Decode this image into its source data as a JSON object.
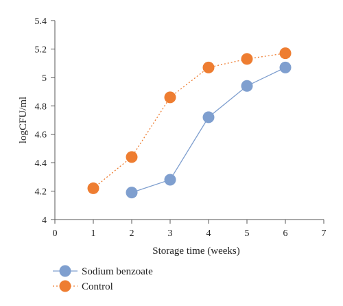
{
  "chart_data": {
    "type": "line",
    "title": "",
    "xlabel": "Storage time (weeks)",
    "ylabel": "logCFU/ml",
    "xlim": [
      0,
      7
    ],
    "ylim": [
      4,
      5.4
    ],
    "xticks": [
      "0",
      "1",
      "2",
      "3",
      "4",
      "5",
      "6",
      "7"
    ],
    "yticks": [
      "4",
      "4.2",
      "4.4",
      "4.6",
      "4.8",
      "5",
      "5.2",
      "5.4"
    ],
    "grid": false,
    "legend_position": "bottom-left",
    "series": [
      {
        "name": "Sodium benzoate",
        "color": "#7f9fcf",
        "line_style": "solid",
        "x": [
          2,
          3,
          4,
          5,
          6
        ],
        "y": [
          4.19,
          4.28,
          4.72,
          4.94,
          5.07
        ]
      },
      {
        "name": "Control",
        "color": "#ee7d31",
        "line_style": "dotted",
        "x": [
          1,
          2,
          3,
          4,
          5,
          6
        ],
        "y": [
          4.22,
          4.44,
          4.86,
          5.07,
          5.13,
          5.17
        ]
      }
    ]
  }
}
